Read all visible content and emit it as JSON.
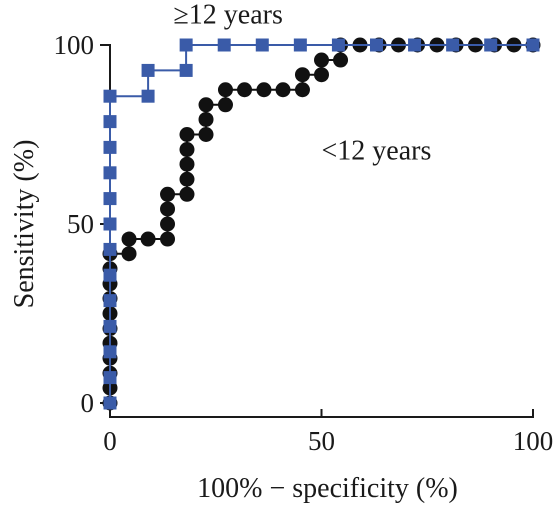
{
  "chart_data": {
    "type": "line",
    "title": "",
    "xlabel": "100% − specificity (%)",
    "ylabel": "Sensitivity (%)",
    "xlim": [
      0,
      100
    ],
    "ylim": [
      0,
      100
    ],
    "x_ticks": [
      "0",
      "50",
      "100"
    ],
    "y_ticks": [
      "0",
      "50",
      "100"
    ],
    "grid": false,
    "series": [
      {
        "name": "≥12 years",
        "color": "#3a5ba8",
        "marker": "square",
        "points": [
          [
            0,
            0
          ],
          [
            0,
            7.1
          ],
          [
            0,
            14.3
          ],
          [
            0,
            21.4
          ],
          [
            0,
            28.6
          ],
          [
            0,
            35.7
          ],
          [
            0,
            42.9
          ],
          [
            0,
            50
          ],
          [
            0,
            57.1
          ],
          [
            0,
            64.3
          ],
          [
            0,
            71.4
          ],
          [
            0,
            78.6
          ],
          [
            0,
            85.7
          ],
          [
            9,
            85.7
          ],
          [
            9,
            92.9
          ],
          [
            18,
            92.9
          ],
          [
            18,
            100
          ],
          [
            27,
            100
          ],
          [
            36,
            100
          ],
          [
            45,
            100
          ],
          [
            54,
            100
          ],
          [
            63,
            100
          ],
          [
            72,
            100
          ],
          [
            81,
            100
          ],
          [
            90,
            100
          ],
          [
            100,
            100
          ]
        ]
      },
      {
        "name": "<12 years",
        "color": "#111111",
        "marker": "circle",
        "points": [
          [
            0,
            0
          ],
          [
            0,
            4.2
          ],
          [
            0,
            8.3
          ],
          [
            0,
            12.5
          ],
          [
            0,
            16.7
          ],
          [
            0,
            20.8
          ],
          [
            0,
            25
          ],
          [
            0,
            29.2
          ],
          [
            0,
            33.3
          ],
          [
            0,
            37.5
          ],
          [
            0,
            41.7
          ],
          [
            4.5,
            41.7
          ],
          [
            4.5,
            45.8
          ],
          [
            9,
            45.8
          ],
          [
            13.6,
            45.8
          ],
          [
            13.6,
            50
          ],
          [
            13.6,
            54.2
          ],
          [
            13.6,
            58.3
          ],
          [
            18.2,
            58.3
          ],
          [
            18.2,
            62.5
          ],
          [
            18.2,
            66.7
          ],
          [
            18.2,
            70.8
          ],
          [
            18.2,
            75
          ],
          [
            22.7,
            75
          ],
          [
            22.7,
            79.2
          ],
          [
            22.7,
            83.3
          ],
          [
            27.3,
            83.3
          ],
          [
            27.3,
            87.5
          ],
          [
            31.8,
            87.5
          ],
          [
            36.4,
            87.5
          ],
          [
            40.9,
            87.5
          ],
          [
            45.5,
            87.5
          ],
          [
            45.5,
            91.7
          ],
          [
            50,
            91.7
          ],
          [
            50,
            95.8
          ],
          [
            54.5,
            95.8
          ],
          [
            54.5,
            100
          ],
          [
            59.1,
            100
          ],
          [
            63.6,
            100
          ],
          [
            68.2,
            100
          ],
          [
            72.7,
            100
          ],
          [
            77.3,
            100
          ],
          [
            81.8,
            100
          ],
          [
            86.4,
            100
          ],
          [
            90.9,
            100
          ],
          [
            95.5,
            100
          ],
          [
            100,
            100
          ]
        ]
      }
    ],
    "annotations": [
      {
        "text": "≥12 years",
        "x": 15,
        "y": 106
      },
      {
        "text": "<12 years",
        "x": 50,
        "y": 68
      }
    ]
  }
}
